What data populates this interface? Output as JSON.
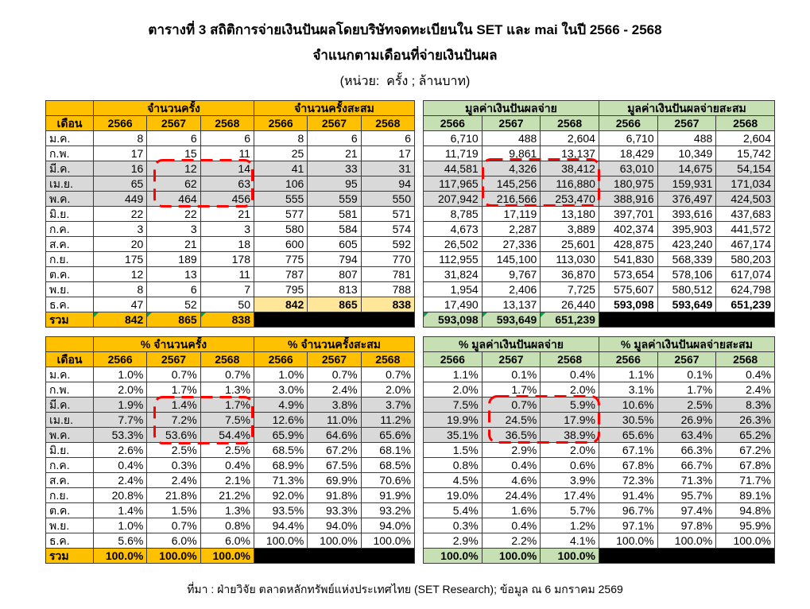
{
  "title": "ตารางที่ 3 สถิติการจ่ายเงินปันผลโดยบริษัทจดทะเบียนใน SET และ mai ในปี 2566 - 2568",
  "subtitle": "จำแนกตามเดือนที่จ่ายเงินปันผล",
  "unit": "(หน่วย:  ครั้ง ; ล้านบาท)",
  "footer": "ที่มา : ฝ่ายวิจัย ตลาดหลักทรัพย์แห่งประเทศไทย (SET Research); ข้อมูล ณ 6 มกราคม 2569",
  "colors": {
    "header_gold": "#FFC000",
    "header_green": "#C6E0B4",
    "highlight_yellow": "#FFE699",
    "row_gray": "#D9D9D9",
    "annotation_red": "#FF0000",
    "total_fill_black": "#000000",
    "error_mark_green": "#00A050"
  },
  "tables": {
    "count": {
      "month_header": "เดือน",
      "group_headers": [
        "จำนวนครั้ง",
        "จำนวนครั้งสะสม"
      ],
      "year_headers": [
        "2566",
        "2567",
        "2568",
        "2566",
        "2567",
        "2568"
      ],
      "months": [
        "ม.ค.",
        "ก.พ.",
        "มี.ค.",
        "เม.ย.",
        "พ.ค.",
        "มิ.ย.",
        "ก.ค.",
        "ส.ค.",
        "ก.ย.",
        "ต.ค.",
        "พ.ย.",
        "ธ.ค."
      ],
      "rows": [
        [
          "8",
          "6",
          "6",
          "8",
          "6",
          "6"
        ],
        [
          "17",
          "15",
          "11",
          "25",
          "21",
          "17"
        ],
        [
          "16",
          "12",
          "14",
          "41",
          "33",
          "31"
        ],
        [
          "65",
          "62",
          "63",
          "106",
          "95",
          "94"
        ],
        [
          "449",
          "464",
          "456",
          "555",
          "559",
          "550"
        ],
        [
          "22",
          "22",
          "21",
          "577",
          "581",
          "571"
        ],
        [
          "3",
          "3",
          "3",
          "580",
          "584",
          "574"
        ],
        [
          "20",
          "21",
          "18",
          "600",
          "605",
          "592"
        ],
        [
          "175",
          "189",
          "178",
          "775",
          "794",
          "770"
        ],
        [
          "12",
          "13",
          "11",
          "787",
          "807",
          "781"
        ],
        [
          "8",
          "6",
          "7",
          "795",
          "813",
          "788"
        ],
        [
          "47",
          "52",
          "50",
          "842",
          "865",
          "838"
        ]
      ],
      "total_label": "รวม",
      "total": [
        "842",
        "865",
        "838"
      ]
    },
    "value": {
      "group_headers": [
        "มูลค่าเงินปันผลจ่าย",
        "มูลค่าเงินปันผลจ่ายสะสม"
      ],
      "year_headers": [
        "2566",
        "2567",
        "2568",
        "2566",
        "2567",
        "2568"
      ],
      "rows": [
        [
          "6,710",
          "488",
          "2,604",
          "6,710",
          "488",
          "2,604"
        ],
        [
          "11,719",
          "9,861",
          "13,137",
          "18,429",
          "10,349",
          "15,742"
        ],
        [
          "44,581",
          "4,326",
          "38,412",
          "63,010",
          "14,675",
          "54,154"
        ],
        [
          "117,965",
          "145,256",
          "116,880",
          "180,975",
          "159,931",
          "171,034"
        ],
        [
          "207,942",
          "216,566",
          "253,470",
          "388,916",
          "376,497",
          "424,503"
        ],
        [
          "8,785",
          "17,119",
          "13,180",
          "397,701",
          "393,616",
          "437,683"
        ],
        [
          "4,673",
          "2,287",
          "3,889",
          "402,374",
          "395,903",
          "441,572"
        ],
        [
          "26,502",
          "27,336",
          "25,601",
          "428,875",
          "423,240",
          "467,174"
        ],
        [
          "112,955",
          "145,100",
          "113,030",
          "541,830",
          "568,339",
          "580,203"
        ],
        [
          "31,824",
          "9,767",
          "36,870",
          "573,654",
          "578,106",
          "617,074"
        ],
        [
          "1,954",
          "2,406",
          "7,725",
          "575,607",
          "580,512",
          "624,798"
        ],
        [
          "17,490",
          "13,137",
          "26,440",
          "593,098",
          "593,649",
          "651,239"
        ]
      ],
      "total": [
        "593,098",
        "593,649",
        "651,239"
      ]
    },
    "count_pct": {
      "month_header": "เดือน",
      "group_headers": [
        "% จำนวนครั้ง",
        "% จำนวนครั้งสะสม"
      ],
      "year_headers": [
        "2566",
        "2567",
        "2568",
        "2566",
        "2567",
        "2568"
      ],
      "months": [
        "ม.ค.",
        "ก.พ.",
        "มี.ค.",
        "เม.ย.",
        "พ.ค.",
        "มิ.ย.",
        "ก.ค.",
        "ส.ค.",
        "ก.ย.",
        "ต.ค.",
        "พ.ย.",
        "ธ.ค."
      ],
      "rows": [
        [
          "1.0%",
          "0.7%",
          "0.7%",
          "1.0%",
          "0.7%",
          "0.7%"
        ],
        [
          "2.0%",
          "1.7%",
          "1.3%",
          "3.0%",
          "2.4%",
          "2.0%"
        ],
        [
          "1.9%",
          "1.4%",
          "1.7%",
          "4.9%",
          "3.8%",
          "3.7%"
        ],
        [
          "7.7%",
          "7.2%",
          "7.5%",
          "12.6%",
          "11.0%",
          "11.2%"
        ],
        [
          "53.3%",
          "53.6%",
          "54.4%",
          "65.9%",
          "64.6%",
          "65.6%"
        ],
        [
          "2.6%",
          "2.5%",
          "2.5%",
          "68.5%",
          "67.2%",
          "68.1%"
        ],
        [
          "0.4%",
          "0.3%",
          "0.4%",
          "68.9%",
          "67.5%",
          "68.5%"
        ],
        [
          "2.4%",
          "2.4%",
          "2.1%",
          "71.3%",
          "69.9%",
          "70.6%"
        ],
        [
          "20.8%",
          "21.8%",
          "21.2%",
          "92.0%",
          "91.8%",
          "91.9%"
        ],
        [
          "1.4%",
          "1.5%",
          "1.3%",
          "93.5%",
          "93.3%",
          "93.2%"
        ],
        [
          "1.0%",
          "0.7%",
          "0.8%",
          "94.4%",
          "94.0%",
          "94.0%"
        ],
        [
          "5.6%",
          "6.0%",
          "6.0%",
          "100.0%",
          "100.0%",
          "100.0%"
        ]
      ],
      "total_label": "รวม",
      "total": [
        "100.0%",
        "100.0%",
        "100.0%"
      ]
    },
    "value_pct": {
      "group_headers": [
        "% มูลค่าเงินปันผลจ่าย",
        "% มูลค่าเงินปันผลจ่ายสะสม"
      ],
      "year_headers": [
        "2566",
        "2567",
        "2568",
        "2566",
        "2567",
        "2568"
      ],
      "rows": [
        [
          "1.1%",
          "0.1%",
          "0.4%",
          "1.1%",
          "0.1%",
          "0.4%"
        ],
        [
          "2.0%",
          "1.7%",
          "2.0%",
          "3.1%",
          "1.7%",
          "2.4%"
        ],
        [
          "7.5%",
          "0.7%",
          "5.9%",
          "10.6%",
          "2.5%",
          "8.3%"
        ],
        [
          "19.9%",
          "24.5%",
          "17.9%",
          "30.5%",
          "26.9%",
          "26.3%"
        ],
        [
          "35.1%",
          "36.5%",
          "38.9%",
          "65.6%",
          "63.4%",
          "65.2%"
        ],
        [
          "1.5%",
          "2.9%",
          "2.0%",
          "67.1%",
          "66.3%",
          "67.2%"
        ],
        [
          "0.8%",
          "0.4%",
          "0.6%",
          "67.8%",
          "66.7%",
          "67.8%"
        ],
        [
          "4.5%",
          "4.6%",
          "3.9%",
          "72.3%",
          "71.3%",
          "71.7%"
        ],
        [
          "19.0%",
          "24.4%",
          "17.4%",
          "91.4%",
          "95.7%",
          "89.1%"
        ],
        [
          "5.4%",
          "1.6%",
          "5.7%",
          "96.7%",
          "97.4%",
          "94.8%"
        ],
        [
          "0.3%",
          "0.4%",
          "1.2%",
          "97.1%",
          "97.8%",
          "95.9%"
        ],
        [
          "2.9%",
          "2.2%",
          "4.1%",
          "100.0%",
          "100.0%",
          "100.0%"
        ]
      ],
      "total": [
        "100.0%",
        "100.0%",
        "100.0%"
      ]
    }
  }
}
